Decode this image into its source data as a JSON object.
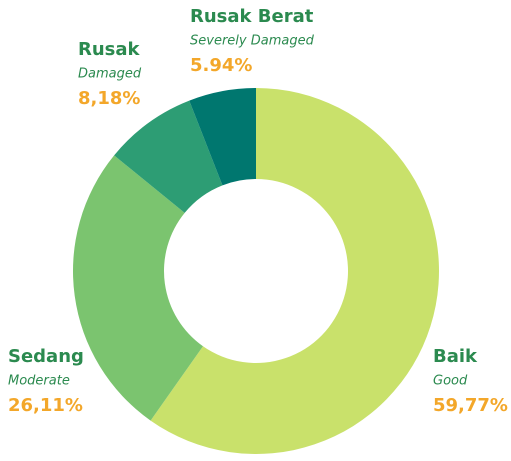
{
  "chart_data": {
    "type": "pie",
    "donut": true,
    "categories": [
      "Baik",
      "Sedang",
      "Rusak",
      "Rusak Berat"
    ],
    "sublabels": [
      "Good",
      "Moderate",
      "Damaged",
      "Severely Damaged"
    ],
    "values": [
      59.77,
      26.11,
      8.18,
      5.94
    ],
    "value_labels": [
      "59,77%",
      "26,11%",
      "8,18%",
      "5.94%"
    ],
    "colors": [
      "#c9e16b",
      "#7bc46f",
      "#2d9d74",
      "#00776f"
    ]
  }
}
